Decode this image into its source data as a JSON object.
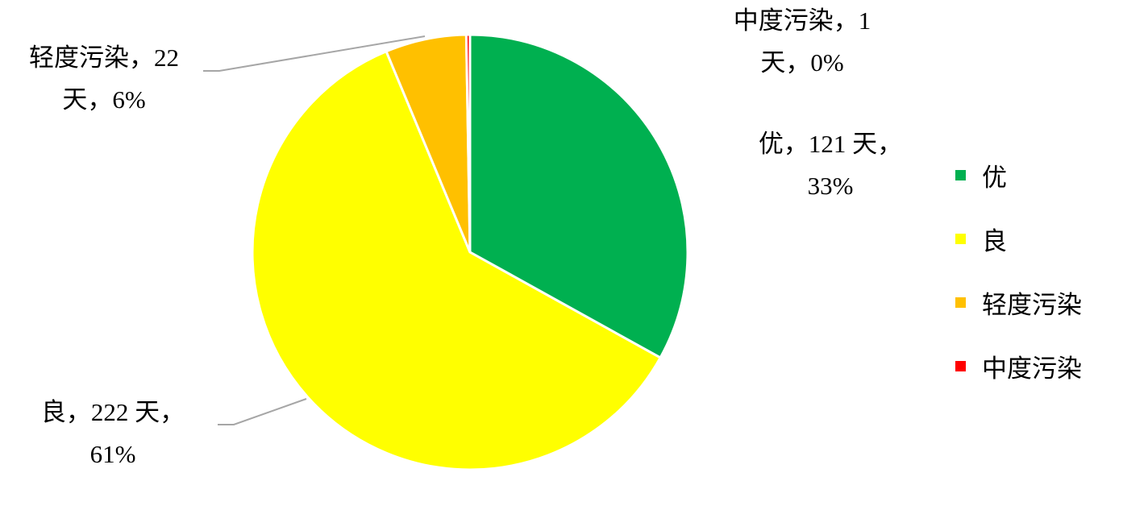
{
  "chart_data": {
    "type": "pie",
    "categories": [
      "优",
      "良",
      "轻度污染",
      "中度污染"
    ],
    "values": [
      121,
      222,
      22,
      1
    ],
    "percent_labels": [
      "33%",
      "61%",
      "6%",
      "0%"
    ],
    "colors": [
      "#00B050",
      "#FFFF00",
      "#FFC000",
      "#FF0000"
    ],
    "data_labels": [
      {
        "line1": "优，121 天，",
        "line2": "33%"
      },
      {
        "line1": "良，222 天，",
        "line2": "61%"
      },
      {
        "line1": "轻度污染，22",
        "line2": "天，6%"
      },
      {
        "line1": "中度污染，1",
        "line2": "天，0%"
      }
    ],
    "start_angle": "12 o'clock",
    "direction": "clockwise",
    "legend": {
      "position": "right",
      "entries": [
        "优",
        "良",
        "轻度污染",
        "中度污染"
      ]
    },
    "leader_line_color": "#A6A6A6"
  }
}
